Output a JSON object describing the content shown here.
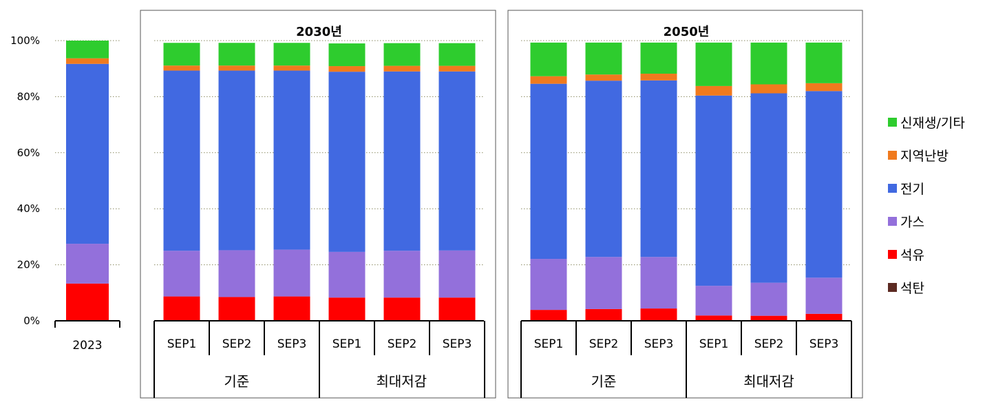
{
  "chart_data": {
    "type": "bar",
    "stacked": true,
    "y_axis": {
      "ylim": [
        0,
        100
      ],
      "ticks": [
        0,
        20,
        40,
        60,
        80,
        100
      ],
      "tick_labels": [
        "0%",
        "20%",
        "40%",
        "60%",
        "80%",
        "100%"
      ],
      "grid": "dotted"
    },
    "legend": {
      "placement": "right",
      "items": [
        {
          "name": "신재생/기타",
          "color": "#2ECC2E"
        },
        {
          "name": "지역난방",
          "color": "#F07A1E"
        },
        {
          "name": "전기",
          "color": "#4169E1"
        },
        {
          "name": "가스",
          "color": "#9370DB"
        },
        {
          "name": "석유",
          "color": "#FF0000"
        },
        {
          "name": "석탄",
          "color": "#5C2A22"
        }
      ]
    },
    "panels": [
      {
        "title": "",
        "bars": [
          {
            "label": "2023",
            "values": [
              0,
              13.3,
              14.2,
              64.2,
              2.0,
              6.3
            ]
          }
        ]
      },
      {
        "title": "2030년",
        "groups": [
          "기준",
          "최대저감"
        ],
        "bars": [
          {
            "label": "SEP1",
            "group": "기준",
            "values": [
              0,
              8.7,
              16.3,
              64.3,
              1.8,
              8.1
            ]
          },
          {
            "label": "SEP2",
            "group": "기준",
            "values": [
              0,
              8.5,
              16.7,
              64.1,
              1.8,
              8.1
            ]
          },
          {
            "label": "SEP3",
            "group": "기준",
            "values": [
              0,
              8.7,
              16.7,
              63.9,
              1.8,
              8.1
            ]
          },
          {
            "label": "SEP1",
            "group": "최대저감",
            "values": [
              0,
              8.3,
              16.3,
              64.3,
              2.0,
              8.1
            ]
          },
          {
            "label": "SEP2",
            "group": "최대저감",
            "values": [
              0,
              8.3,
              16.7,
              64.0,
              2.0,
              8.1
            ]
          },
          {
            "label": "SEP3",
            "group": "최대저감",
            "values": [
              0,
              8.3,
              16.8,
              63.9,
              2.0,
              8.1
            ]
          }
        ]
      },
      {
        "title": "2050년",
        "groups": [
          "기준",
          "최대저감"
        ],
        "bars": [
          {
            "label": "SEP1",
            "group": "기준",
            "values": [
              0,
              3.9,
              18.2,
              62.5,
              2.7,
              12.0
            ]
          },
          {
            "label": "SEP2",
            "group": "기준",
            "values": [
              0,
              4.2,
              18.6,
              62.9,
              2.2,
              11.4
            ]
          },
          {
            "label": "SEP3",
            "group": "기준",
            "values": [
              0,
              4.4,
              18.4,
              63.0,
              2.4,
              11.1
            ]
          },
          {
            "label": "SEP1",
            "group": "최대저감",
            "values": [
              0,
              1.9,
              10.6,
              67.9,
              3.4,
              15.5
            ]
          },
          {
            "label": "SEP2",
            "group": "최대저감",
            "values": [
              0,
              1.8,
              11.8,
              67.6,
              3.2,
              14.9
            ]
          },
          {
            "label": "SEP3",
            "group": "최대저감",
            "values": [
              0,
              2.5,
              12.9,
              66.6,
              2.8,
              14.5
            ]
          }
        ]
      }
    ],
    "series_order": [
      "석탄",
      "석유",
      "가스",
      "전기",
      "지역난방",
      "신재생/기타"
    ]
  }
}
